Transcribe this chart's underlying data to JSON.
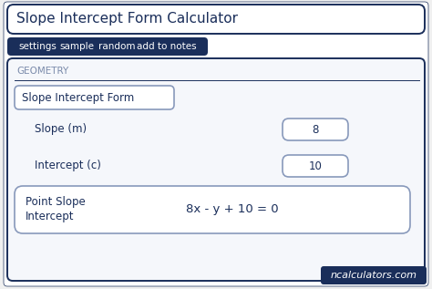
{
  "bg_color": "#f0f0f0",
  "outer_bg": "#ffffff",
  "outer_border_color": "#1a2e5a",
  "title_text": "Slope Intercept Form Calculator",
  "title_font_size": 11,
  "tab_bg_color": "#1a2e5a",
  "tab_text_color": "#ffffff",
  "tab_labels": [
    "settings",
    "sample",
    "random",
    "add to notes"
  ],
  "tab_font_size": 7.5,
  "section_border_color": "#1a2e5a",
  "geometry_label": "GEOMETRY",
  "geometry_font_size": 7.5,
  "form_label": "Slope Intercept Form",
  "form_font_size": 8.5,
  "field1_label": "Slope (m)",
  "field1_value": "8",
  "field2_label": "Intercept (c)",
  "field2_value": "10",
  "result_label_line1": "Point Slope",
  "result_label_line2": "Intercept",
  "result_formula": "8x - y + 10 = 0",
  "field_font_size": 8.5,
  "result_font_size": 9.5,
  "branding_text": "ncalculators.com",
  "branding_bg": "#1a2e5a",
  "branding_text_color": "#ffffff",
  "branding_font_size": 8,
  "text_color_dark": "#1a2e5a",
  "input_box_border": "#8899bb",
  "input_box_bg": "#ffffff",
  "main_bg": "#f5f7fb"
}
